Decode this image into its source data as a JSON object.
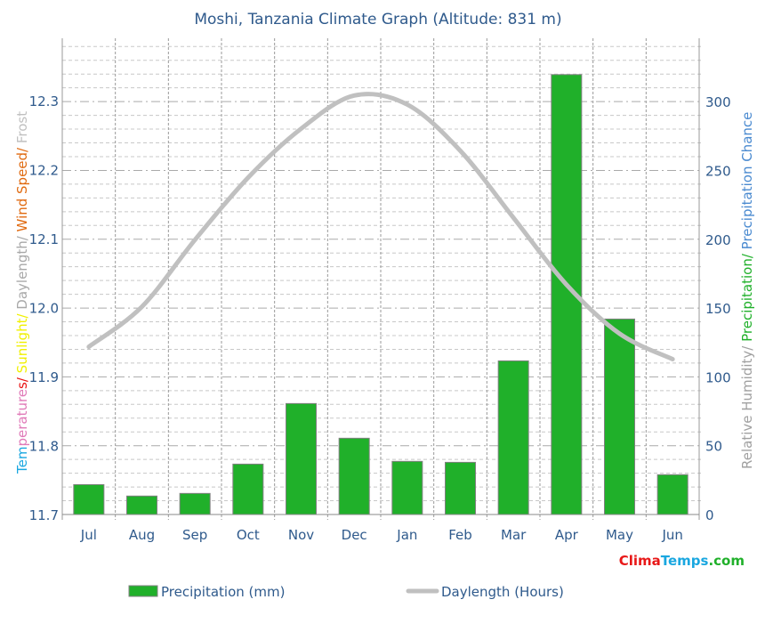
{
  "chart_data": {
    "type": "bar",
    "title": "Moshi, Tanzania Climate Graph (Altitude: 831 m)",
    "categories": [
      "Jul",
      "Aug",
      "Sep",
      "Oct",
      "Nov",
      "Dec",
      "Jan",
      "Feb",
      "Mar",
      "Apr",
      "May",
      "Jun"
    ],
    "series": [
      {
        "name": "Precipitation (mm)",
        "type": "bar",
        "axis": "right",
        "color": "#20b02a",
        "values": [
          21.7,
          13.4,
          15.3,
          36.6,
          80.6,
          55.4,
          38.6,
          37.9,
          111.6,
          319.6,
          142.0,
          28.9
        ]
      },
      {
        "name": "Daylength (Hours)",
        "type": "line",
        "axis": "left",
        "color": "#c0c0c0",
        "values": [
          11.943,
          12.001,
          12.098,
          12.188,
          12.259,
          12.307,
          12.294,
          12.227,
          12.13,
          12.033,
          11.962,
          11.925
        ]
      }
    ],
    "left_axis": {
      "label_parts": [
        {
          "text": "Tem",
          "color": "#1aa7e0"
        },
        {
          "text": "perature",
          "color": "#e07ab8"
        },
        {
          "text": "s/ ",
          "color": "#e81010"
        },
        {
          "text": "Sunlight/ ",
          "color": "#f0f000"
        },
        {
          "text": "Daylength/ ",
          "color": "#a8a8a8"
        },
        {
          "text": "Wind Speed/ ",
          "color": "#e06a10"
        },
        {
          "text": "Frost",
          "color": "#c0c0c0"
        }
      ],
      "ylim": [
        11.7,
        12.39
      ],
      "ticks": [
        "11.7",
        "11.8",
        "11.9",
        "12.0",
        "12.1",
        "12.2",
        "12.3"
      ]
    },
    "right_axis": {
      "label_parts": [
        {
          "text": "Relative Humidity/ ",
          "color": "#a0a0a0"
        },
        {
          "text": "Precipitation/ ",
          "color": "#20b02a"
        },
        {
          "text": "Precipitation Chance",
          "color": "#4a8ad0"
        }
      ],
      "ylim": [
        0,
        346
      ],
      "ticks": [
        "0",
        "50",
        "100",
        "150",
        "200",
        "250",
        "300"
      ]
    },
    "grid": true,
    "legend_placement": "bottom"
  },
  "logo": {
    "parts": [
      {
        "text": "Clima",
        "color": "#e81818"
      },
      {
        "text": "Temps",
        "color": "#1aa7e0"
      },
      {
        "text": ".com",
        "color": "#20b02a"
      }
    ]
  }
}
